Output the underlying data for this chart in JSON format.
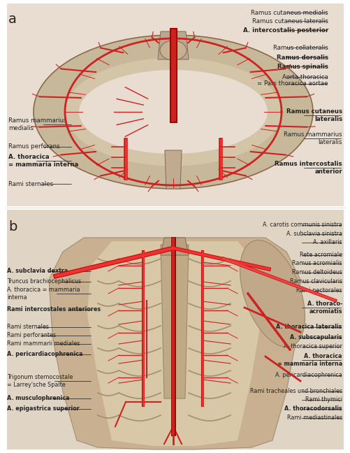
{
  "figure_bg": "#ffffff",
  "panel_a_label": "a",
  "panel_b_label": "b",
  "panel_a_annotations_right": [
    [
      "Ramus cutaneus medialis",
      false
    ],
    [
      "Ramus cutaneus lateralis",
      false
    ],
    [
      "A. intercostalis posterior",
      true
    ],
    [
      "Ramus collateralis",
      false
    ],
    [
      "Ramus dorsalis",
      true
    ],
    [
      "Ramus spinalis",
      true
    ],
    [
      "Aorta thoracica",
      false
    ],
    [
      "= Pars thoracica aortae",
      false
    ]
  ],
  "panel_a_annotations_right2": [
    [
      "Ramus cutaneus\nlateralis",
      true
    ],
    [
      "Ramus mammarius\nlateralis",
      false
    ],
    [
      "Ramus intercostalis\nanterior",
      true
    ]
  ],
  "panel_a_annotations_left": [
    [
      "Ramus mammarius\nmedialis",
      false
    ],
    [
      "Ramus perforans",
      false
    ],
    [
      "A. thoracica\n= mammaria interna",
      true
    ],
    [
      "Rami sternales",
      false
    ]
  ],
  "panel_b_annotations_right": [
    [
      "A. carotis communis sinistra",
      false
    ],
    [
      "A. subclavia sinistra",
      false
    ],
    [
      "A. axillaris",
      false
    ],
    [
      "Rete acromiale",
      false
    ],
    [
      "Ramus acromialis",
      false
    ],
    [
      "Ramus deltoideus",
      false
    ],
    [
      "Ramus clavicularis",
      false
    ],
    [
      "Rami pectorales",
      false
    ],
    [
      "A. thoraco-\nacromiatis",
      true
    ],
    [
      "A. thoracica lateralis",
      true
    ],
    [
      "A. subscapularis",
      true
    ],
    [
      "A. thoracica superior",
      false
    ],
    [
      "A. thoracica\n= mammaria interna",
      true
    ],
    [
      "A. pericardiacophrenica",
      false
    ],
    [
      "Rami tracheales und bronchiales",
      false
    ],
    [
      "Rami thymici",
      false
    ],
    [
      "A. thoracodorsalis",
      true
    ],
    [
      "Rami mediastinales",
      false
    ]
  ],
  "panel_b_annotations_left": [
    [
      "A. subclavia dextra",
      true
    ],
    [
      "Truncus brachiocephalicus",
      false
    ],
    [
      "A. thoracica = mammaria\ninterna",
      false
    ],
    [
      "Rami intercostales anteriores",
      true
    ],
    [
      "Rami sternales",
      false
    ],
    [
      "Rami perforantes",
      false
    ],
    [
      "Rami mammarii mediales",
      false
    ],
    [
      "A. pericardiacophrenica",
      true
    ],
    [
      "Trigonum sternocostale\n= Larrey'sche Spalte",
      false
    ],
    [
      "A. musculophrenica",
      true
    ],
    [
      "A. epigastrica superior",
      true
    ]
  ],
  "line_color": "#333333",
  "bold_color": "#000000",
  "normal_color": "#444444",
  "label_fontsize": 6.5,
  "panel_label_fontsize": 14
}
